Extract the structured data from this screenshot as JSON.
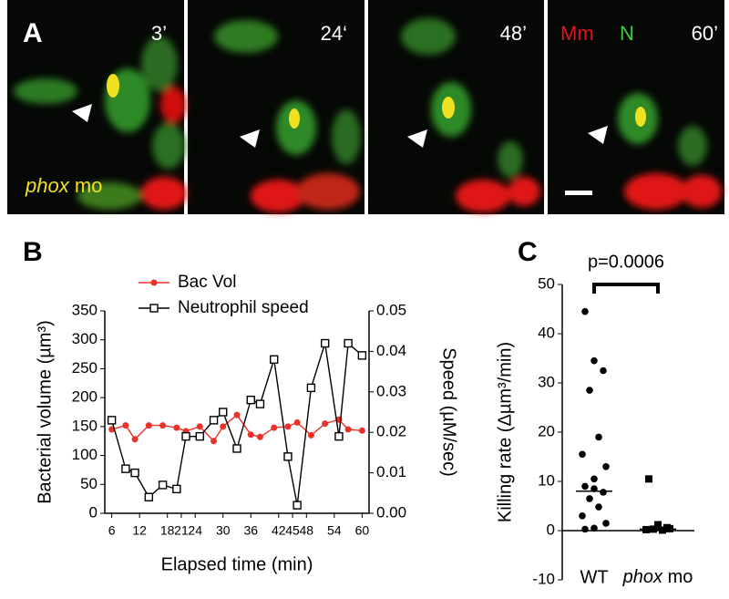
{
  "panel_a": {
    "label": "A",
    "timestamps": [
      "3’",
      "24‘",
      "48’",
      "60’"
    ],
    "legend": [
      "Mm",
      "N"
    ],
    "condition": "phox mo"
  },
  "chart_data": [
    {
      "type": "line",
      "panel_label": "B",
      "x_label": "Elapsed time (min)",
      "y_label": "Bacterial volume (µm³)",
      "y2_label": "Speed (µM/sec)",
      "x": [
        6,
        9,
        11,
        14,
        17,
        20,
        22,
        25,
        28,
        30,
        33,
        36,
        38,
        41,
        44,
        46,
        49,
        52,
        55,
        57,
        60
      ],
      "xlim": [
        4.5,
        61.5
      ],
      "xticks": [
        6,
        12,
        18,
        21,
        24,
        30,
        36,
        42,
        45,
        48,
        54,
        60
      ],
      "ylim": [
        0,
        350
      ],
      "yticks": [
        0,
        50,
        100,
        150,
        200,
        250,
        300,
        350
      ],
      "y2lim": [
        0,
        0.05
      ],
      "y2ticks": [
        {
          "value": 0,
          "label": "0.00"
        },
        {
          "value": 0.01,
          "label": "0.01"
        },
        {
          "value": 0.02,
          "label": "0.02"
        },
        {
          "value": 0.03,
          "label": "0.03"
        },
        {
          "value": 0.04,
          "label": "0.04"
        },
        {
          "value": 0.05,
          "label": "0.05"
        }
      ],
      "series": [
        {
          "name": "Bac Vol",
          "color": "#e8322a",
          "marker": "circle",
          "values": [
            145,
            152,
            128,
            152,
            152,
            148,
            142,
            150,
            125,
            150,
            170,
            136,
            132,
            148,
            150,
            157,
            135,
            155,
            162,
            145,
            143
          ]
        },
        {
          "name": "Neutrophil speed",
          "color": "#000000",
          "marker": "square",
          "axis": "y2",
          "values": [
            0.023,
            0.011,
            0.01,
            0.004,
            0.007,
            0.006,
            0.019,
            0.019,
            0.023,
            0.025,
            0.016,
            0.028,
            0.027,
            0.038,
            0.014,
            0.002,
            0.031,
            0.042,
            0.019,
            0.042,
            0.039
          ]
        }
      ]
    },
    {
      "type": "strip",
      "panel_label": "C",
      "y_label": "Killing rate (Δµm³/min)",
      "annotation": "p=0.0006",
      "categories": [
        "WT",
        "phox mo"
      ],
      "ylim": [
        -10,
        50
      ],
      "yticks": [
        -10,
        0,
        10,
        20,
        30,
        40,
        50
      ],
      "color": "#000000",
      "points": [
        [
          44.5,
          34.5,
          32.5,
          28.5,
          19,
          15.5,
          13,
          10.5,
          9,
          8.5,
          7.8,
          6.5,
          4.8,
          3,
          1.5,
          0.5,
          0.3
        ],
        [
          10.5,
          1.2,
          0.6,
          0.3,
          0.1,
          0.2,
          0.4,
          0.8
        ]
      ],
      "medians": [
        8,
        0.3
      ]
    }
  ]
}
